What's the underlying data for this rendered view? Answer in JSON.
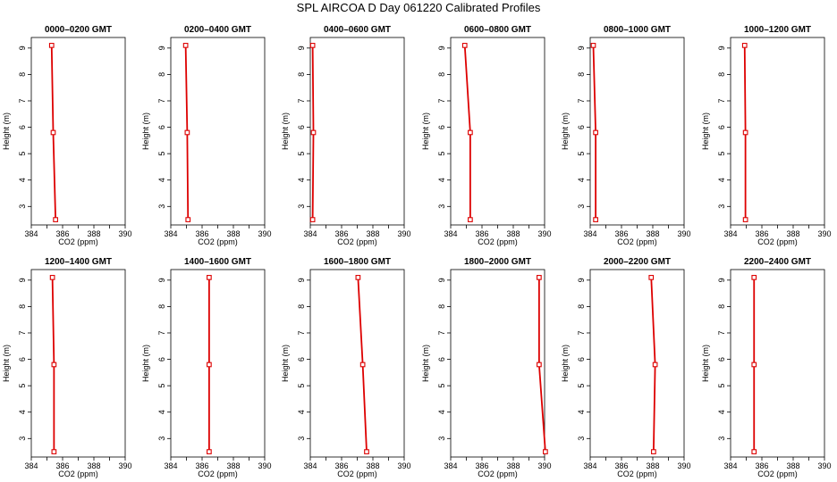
{
  "title": "SPL AIRCOA D  Day 061220  Calibrated Profiles",
  "colors": {
    "series": "#dd0000",
    "axis": "#000000"
  },
  "chart_data": [
    {
      "type": "line",
      "title": "0000–0200 GMT",
      "xlabel": "CO2 (ppm)",
      "ylabel": "Height (m)",
      "xlim": [
        384,
        390
      ],
      "ylim": [
        2.3,
        9.4
      ],
      "xticks": [
        384,
        386,
        388,
        390
      ],
      "yticks": [
        3,
        4,
        5,
        6,
        7,
        8,
        9
      ],
      "grid": false,
      "series": [
        {
          "x": [
            385.3,
            385.4,
            385.55
          ],
          "y": [
            9.1,
            5.8,
            2.5
          ]
        }
      ]
    },
    {
      "type": "line",
      "title": "0200–0400 GMT",
      "xlabel": "CO2 (ppm)",
      "ylabel": "Height (m)",
      "xlim": [
        384,
        390
      ],
      "ylim": [
        2.3,
        9.4
      ],
      "xticks": [
        384,
        386,
        388,
        390
      ],
      "yticks": [
        3,
        4,
        5,
        6,
        7,
        8,
        9
      ],
      "grid": false,
      "series": [
        {
          "x": [
            384.95,
            385.05,
            385.1
          ],
          "y": [
            9.1,
            5.8,
            2.5
          ]
        }
      ]
    },
    {
      "type": "line",
      "title": "0400–0600 GMT",
      "xlabel": "CO2 (ppm)",
      "ylabel": "Height (m)",
      "xlim": [
        384,
        390
      ],
      "ylim": [
        2.3,
        9.4
      ],
      "xticks": [
        384,
        386,
        388,
        390
      ],
      "yticks": [
        3,
        4,
        5,
        6,
        7,
        8,
        9
      ],
      "grid": false,
      "series": [
        {
          "x": [
            384.15,
            384.2,
            384.15
          ],
          "y": [
            9.1,
            5.8,
            2.5
          ]
        }
      ]
    },
    {
      "type": "line",
      "title": "0600–0800 GMT",
      "xlabel": "CO2 (ppm)",
      "ylabel": "Height (m)",
      "xlim": [
        384,
        390
      ],
      "ylim": [
        2.3,
        9.4
      ],
      "xticks": [
        384,
        386,
        388,
        390
      ],
      "yticks": [
        3,
        4,
        5,
        6,
        7,
        8,
        9
      ],
      "grid": false,
      "series": [
        {
          "x": [
            384.9,
            385.25,
            385.25
          ],
          "y": [
            9.1,
            5.8,
            2.5
          ]
        }
      ]
    },
    {
      "type": "line",
      "title": "0800–1000 GMT",
      "xlabel": "CO2 (ppm)",
      "ylabel": "Height (m)",
      "xlim": [
        384,
        390
      ],
      "ylim": [
        2.3,
        9.4
      ],
      "xticks": [
        384,
        386,
        388,
        390
      ],
      "yticks": [
        3,
        4,
        5,
        6,
        7,
        8,
        9
      ],
      "grid": false,
      "series": [
        {
          "x": [
            384.2,
            384.35,
            384.35
          ],
          "y": [
            9.1,
            5.8,
            2.5
          ]
        }
      ]
    },
    {
      "type": "line",
      "title": "1000–1200 GMT",
      "xlabel": "CO2 (ppm)",
      "ylabel": "Height (m)",
      "xlim": [
        384,
        390
      ],
      "ylim": [
        2.3,
        9.4
      ],
      "xticks": [
        384,
        386,
        388,
        390
      ],
      "yticks": [
        3,
        4,
        5,
        6,
        7,
        8,
        9
      ],
      "grid": false,
      "series": [
        {
          "x": [
            384.9,
            384.95,
            384.95
          ],
          "y": [
            9.1,
            5.8,
            2.5
          ]
        }
      ]
    },
    {
      "type": "line",
      "title": "1200–1400 GMT",
      "xlabel": "CO2 (ppm)",
      "ylabel": "Height (m)",
      "xlim": [
        384,
        390
      ],
      "ylim": [
        2.3,
        9.4
      ],
      "xticks": [
        384,
        386,
        388,
        390
      ],
      "yticks": [
        3,
        4,
        5,
        6,
        7,
        8,
        9
      ],
      "grid": false,
      "series": [
        {
          "x": [
            385.35,
            385.45,
            385.45
          ],
          "y": [
            9.1,
            5.8,
            2.5
          ]
        }
      ]
    },
    {
      "type": "line",
      "title": "1400–1600 GMT",
      "xlabel": "CO2 (ppm)",
      "ylabel": "Height (m)",
      "xlim": [
        384,
        390
      ],
      "ylim": [
        2.3,
        9.4
      ],
      "xticks": [
        384,
        386,
        388,
        390
      ],
      "yticks": [
        3,
        4,
        5,
        6,
        7,
        8,
        9
      ],
      "grid": false,
      "series": [
        {
          "x": [
            386.45,
            386.45,
            386.45
          ],
          "y": [
            9.1,
            5.8,
            2.5
          ]
        }
      ]
    },
    {
      "type": "line",
      "title": "1600–1800 GMT",
      "xlabel": "CO2 (ppm)",
      "ylabel": "Height (m)",
      "xlim": [
        384,
        390
      ],
      "ylim": [
        2.3,
        9.4
      ],
      "xticks": [
        384,
        386,
        388,
        390
      ],
      "yticks": [
        3,
        4,
        5,
        6,
        7,
        8,
        9
      ],
      "grid": false,
      "series": [
        {
          "x": [
            387.05,
            387.35,
            387.6
          ],
          "y": [
            9.1,
            5.8,
            2.5
          ]
        }
      ]
    },
    {
      "type": "line",
      "title": "1800–2000 GMT",
      "xlabel": "CO2 (ppm)",
      "ylabel": "Height (m)",
      "xlim": [
        384,
        390
      ],
      "ylim": [
        2.3,
        9.4
      ],
      "xticks": [
        384,
        386,
        388,
        390
      ],
      "yticks": [
        3,
        4,
        5,
        6,
        7,
        8,
        9
      ],
      "grid": false,
      "series": [
        {
          "x": [
            389.65,
            389.65,
            390.05
          ],
          "y": [
            9.1,
            5.8,
            2.5
          ]
        }
      ]
    },
    {
      "type": "line",
      "title": "2000–2200 GMT",
      "xlabel": "CO2 (ppm)",
      "ylabel": "Height (m)",
      "xlim": [
        384,
        390
      ],
      "ylim": [
        2.3,
        9.4
      ],
      "xticks": [
        384,
        386,
        388,
        390
      ],
      "yticks": [
        3,
        4,
        5,
        6,
        7,
        8,
        9
      ],
      "grid": false,
      "series": [
        {
          "x": [
            387.9,
            388.15,
            388.05
          ],
          "y": [
            9.1,
            5.8,
            2.5
          ]
        }
      ]
    },
    {
      "type": "line",
      "title": "2200–2400 GMT",
      "xlabel": "CO2 (ppm)",
      "ylabel": "Height (m)",
      "xlim": [
        384,
        390
      ],
      "ylim": [
        2.3,
        9.4
      ],
      "xticks": [
        384,
        386,
        388,
        390
      ],
      "yticks": [
        3,
        4,
        5,
        6,
        7,
        8,
        9
      ],
      "grid": false,
      "series": [
        {
          "x": [
            385.5,
            385.5,
            385.5
          ],
          "y": [
            9.1,
            5.8,
            2.5
          ]
        }
      ]
    }
  ]
}
